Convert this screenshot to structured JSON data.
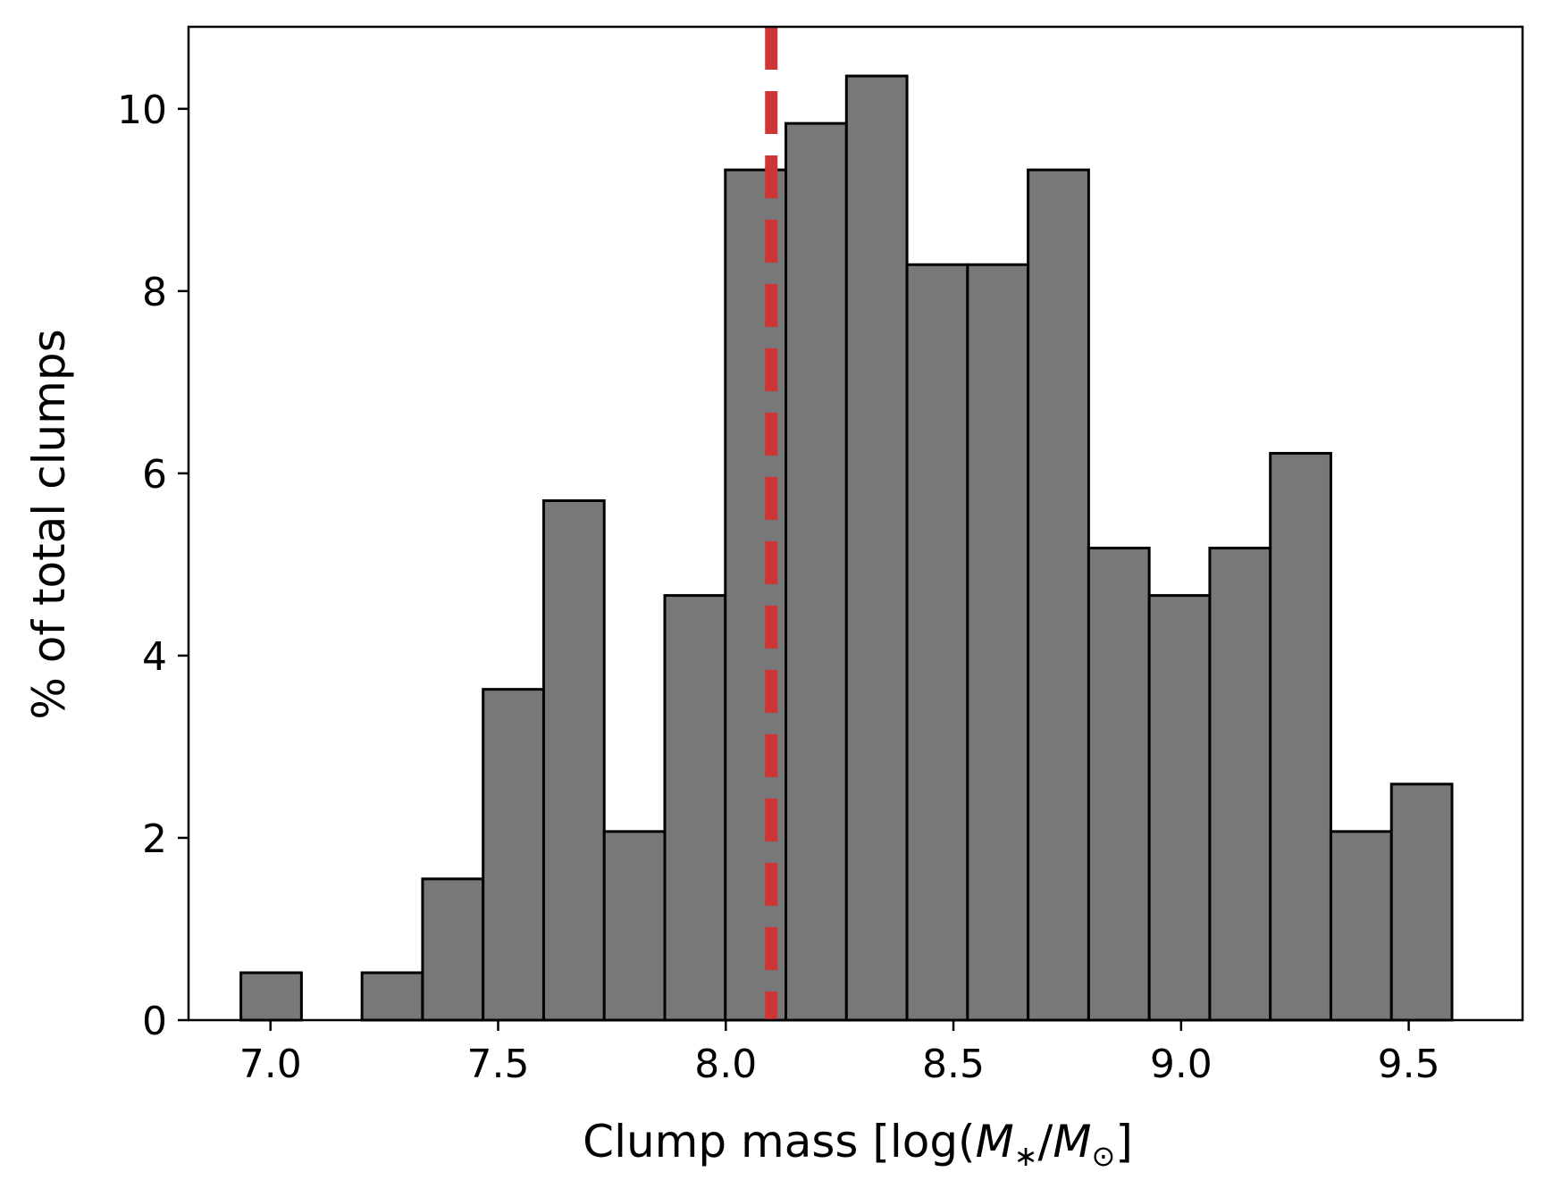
{
  "chart_data": {
    "type": "bar",
    "title": "",
    "xlabel": {
      "prefix": "Clump mass [log(",
      "m1": "M",
      "sub1": "∗",
      "slash": "/",
      "m2": "M",
      "sub2": "⊙",
      "suffix": "]"
    },
    "ylabel": "% of total clumps",
    "xlim": [
      6.82,
      9.75
    ],
    "ylim": [
      0,
      10.9
    ],
    "bin_width": 0.133,
    "bins": [
      {
        "left": 6.935,
        "right": 7.068,
        "value": 0.52
      },
      {
        "left": 7.068,
        "right": 7.201,
        "value": 0.0
      },
      {
        "left": 7.201,
        "right": 7.334,
        "value": 0.52
      },
      {
        "left": 7.334,
        "right": 7.467,
        "value": 1.55
      },
      {
        "left": 7.467,
        "right": 7.6,
        "value": 3.63
      },
      {
        "left": 7.6,
        "right": 7.733,
        "value": 5.7
      },
      {
        "left": 7.733,
        "right": 7.866,
        "value": 2.07
      },
      {
        "left": 7.866,
        "right": 7.999,
        "value": 4.66
      },
      {
        "left": 7.999,
        "right": 8.132,
        "value": 9.33
      },
      {
        "left": 8.132,
        "right": 8.265,
        "value": 9.84
      },
      {
        "left": 8.265,
        "right": 8.398,
        "value": 10.36
      },
      {
        "left": 8.398,
        "right": 8.531,
        "value": 8.29
      },
      {
        "left": 8.531,
        "right": 8.664,
        "value": 8.29
      },
      {
        "left": 8.664,
        "right": 8.797,
        "value": 9.33
      },
      {
        "left": 8.797,
        "right": 8.93,
        "value": 5.18
      },
      {
        "left": 8.93,
        "right": 9.063,
        "value": 4.66
      },
      {
        "left": 9.063,
        "right": 9.196,
        "value": 5.18
      },
      {
        "left": 9.196,
        "right": 9.329,
        "value": 6.22
      },
      {
        "left": 9.329,
        "right": 9.462,
        "value": 2.07
      },
      {
        "left": 9.462,
        "right": 9.595,
        "value": 2.59
      }
    ],
    "x_ticks": [
      {
        "value": 7.0,
        "label": "7.0"
      },
      {
        "value": 7.5,
        "label": "7.5"
      },
      {
        "value": 8.0,
        "label": "8.0"
      },
      {
        "value": 8.5,
        "label": "8.5"
      },
      {
        "value": 9.0,
        "label": "9.0"
      },
      {
        "value": 9.5,
        "label": "9.5"
      }
    ],
    "y_ticks": [
      {
        "value": 0,
        "label": "0"
      },
      {
        "value": 2,
        "label": "2"
      },
      {
        "value": 4,
        "label": "4"
      },
      {
        "value": 6,
        "label": "6"
      },
      {
        "value": 8,
        "label": "8"
      },
      {
        "value": 10,
        "label": "10"
      }
    ],
    "reference_line": {
      "x": 8.1,
      "style": "dashed"
    },
    "colors": {
      "bar_fill": "#787878",
      "bar_edge": "#000000",
      "reference_line": "#d03535",
      "axes": "#000000",
      "background": "#ffffff"
    },
    "grid": false,
    "legend": "none"
  }
}
